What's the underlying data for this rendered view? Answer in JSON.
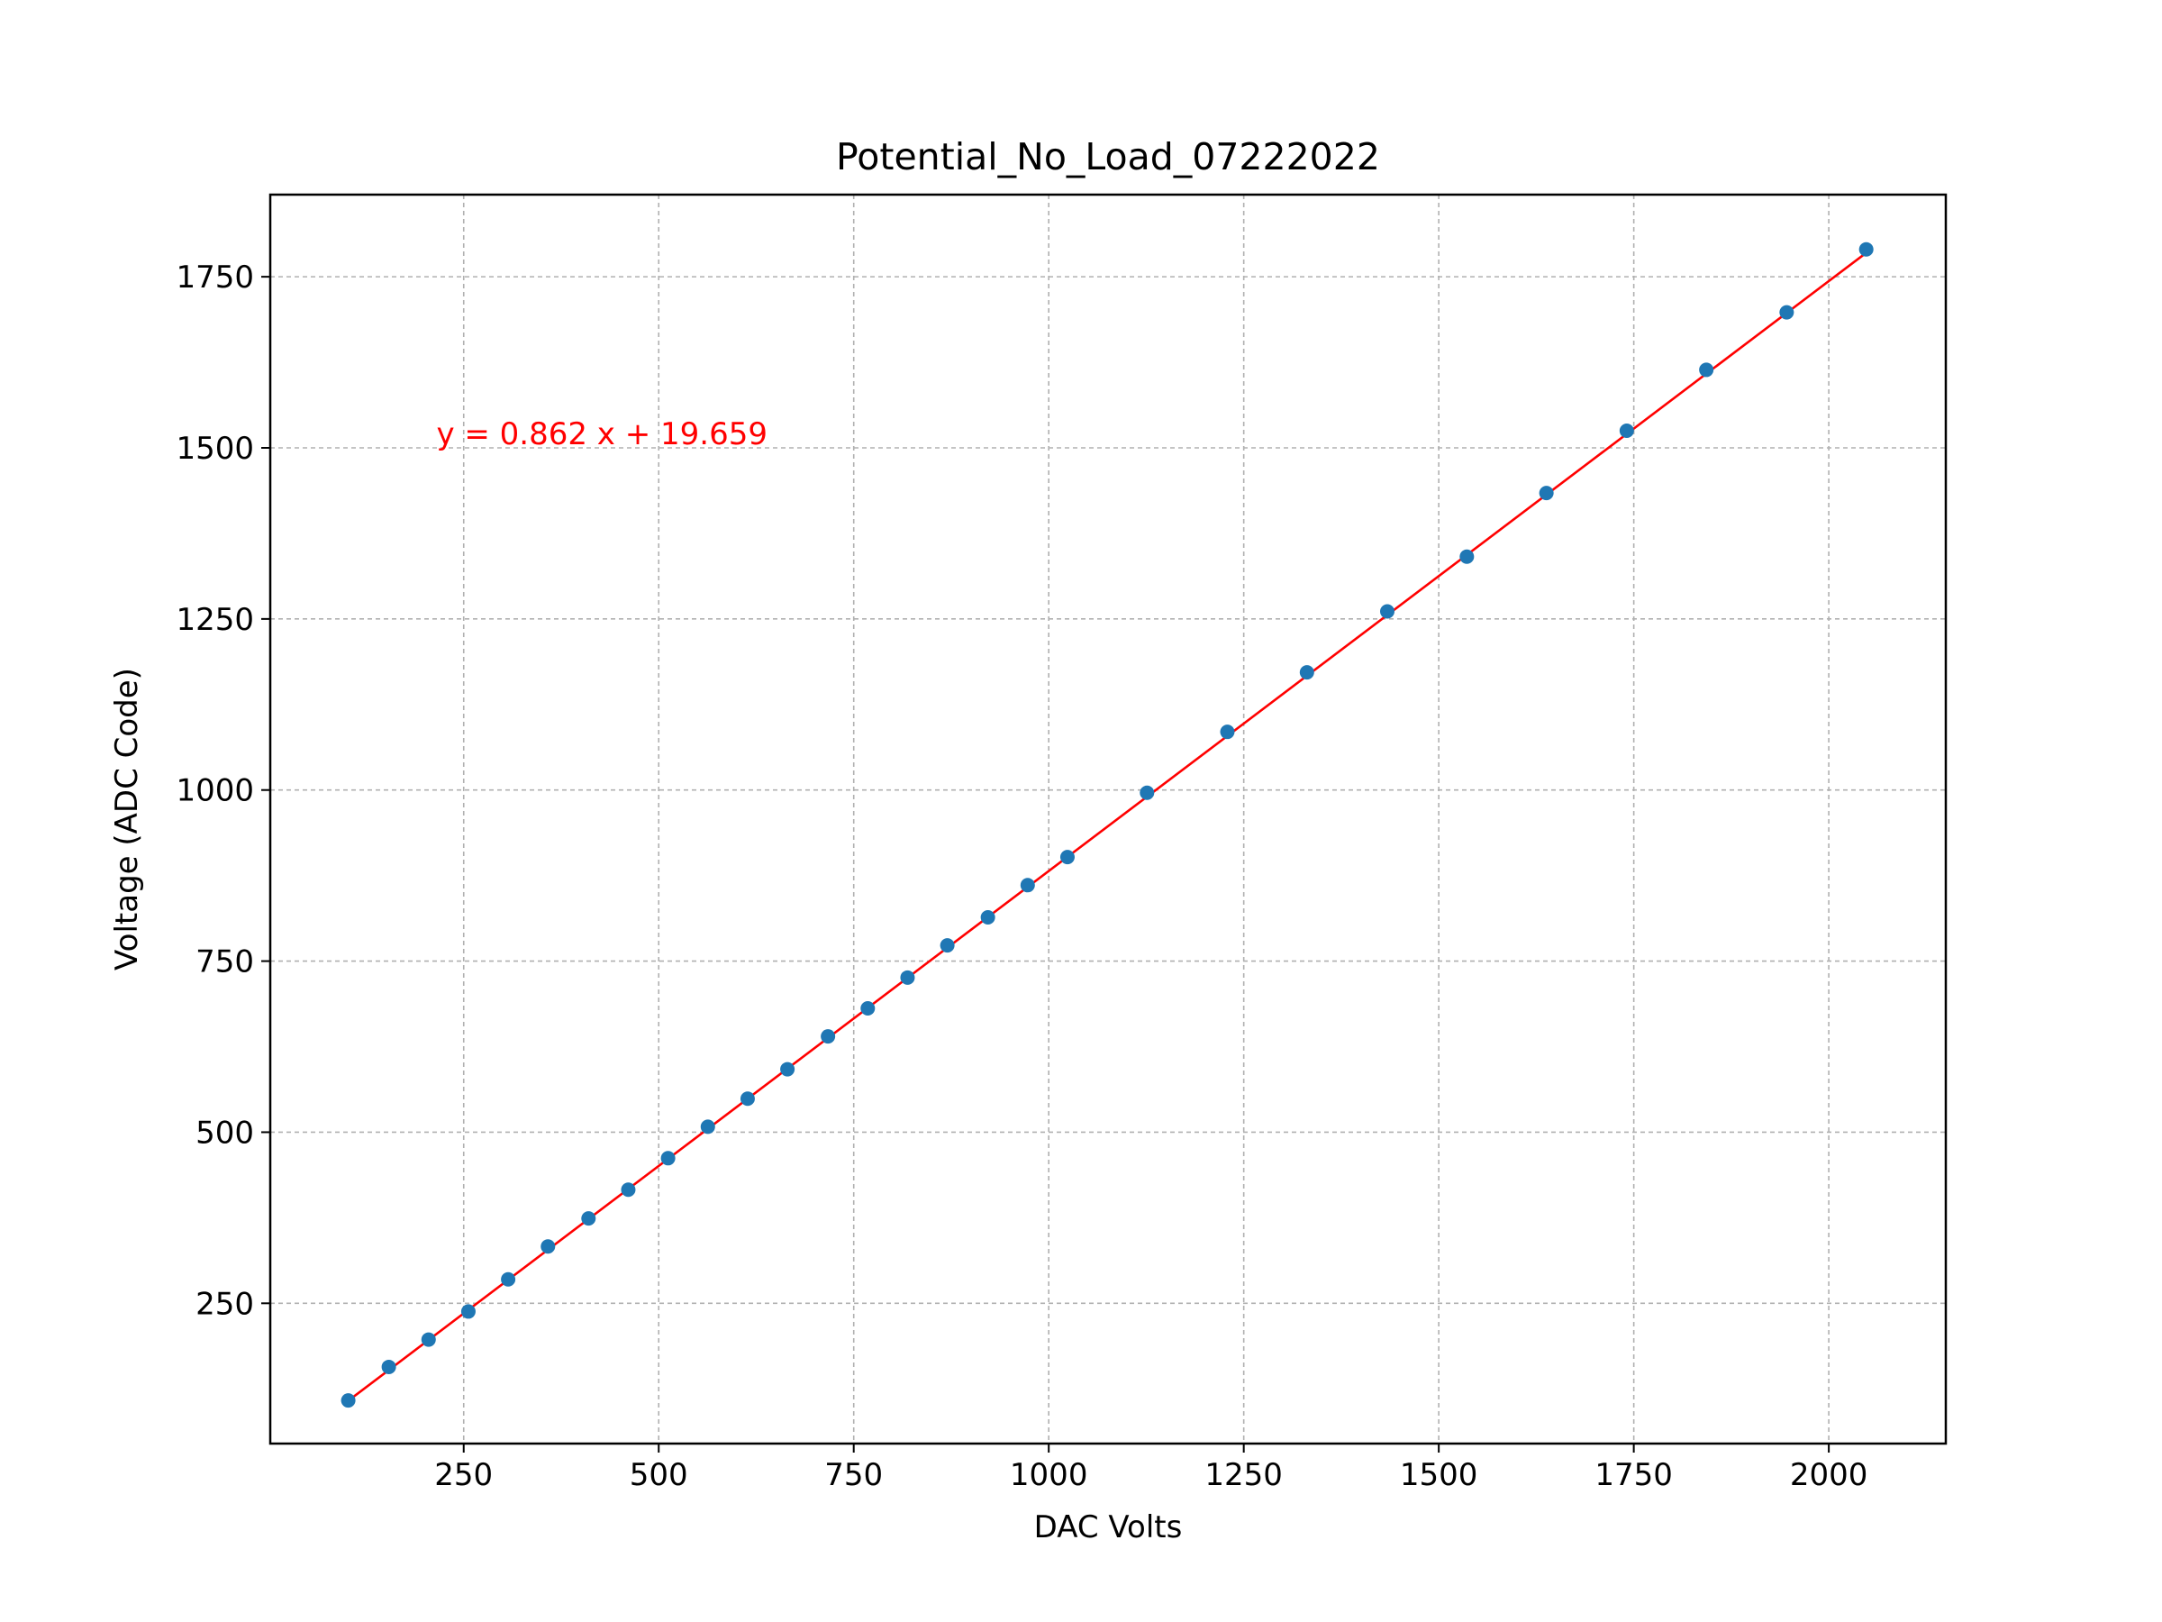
{
  "chart_data": {
    "type": "scatter",
    "title": "Potential_No_Load_07222022",
    "xlabel": "DAC Volts",
    "ylabel": "Voltage (ADC Code)",
    "xlim": [
      2,
      2150
    ],
    "ylim": [
      45,
      1870
    ],
    "xticks": [
      250,
      500,
      750,
      1000,
      1250,
      1500,
      1750,
      2000
    ],
    "yticks": [
      250,
      500,
      750,
      1000,
      1250,
      1500,
      1750
    ],
    "xtick_labels": [
      "250",
      "500",
      "750",
      "1000",
      "1250",
      "1500",
      "1750",
      "2000"
    ],
    "ytick_labels": [
      "250",
      "500",
      "750",
      "1000",
      "1250",
      "1500",
      "1750"
    ],
    "grid": true,
    "series": [
      {
        "type": "scatter",
        "color": "#1f77b4",
        "x": [
          102,
          154,
          205,
          256,
          307,
          358,
          410,
          461,
          512,
          563,
          614,
          665,
          717,
          768,
          819,
          870,
          922,
          973,
          1024,
          1126,
          1229,
          1331,
          1434,
          1536,
          1638,
          1741,
          1843,
          1946,
          2048
        ],
        "y": [
          108,
          157,
          197,
          238,
          285,
          333,
          374,
          416,
          462,
          508,
          549,
          592,
          640,
          681,
          726,
          773,
          814,
          861,
          902,
          996,
          1085,
          1172,
          1261,
          1341,
          1434,
          1525,
          1614,
          1698,
          1790
        ]
      },
      {
        "type": "line",
        "color": "#ff0000",
        "x": [
          102,
          2048
        ],
        "y": [
          107.6,
          1785.0
        ]
      }
    ],
    "annotations": [
      {
        "text": "y = 0.862 x + 19.659",
        "x": 215,
        "y": 1505,
        "color": "#ff0000"
      }
    ]
  }
}
